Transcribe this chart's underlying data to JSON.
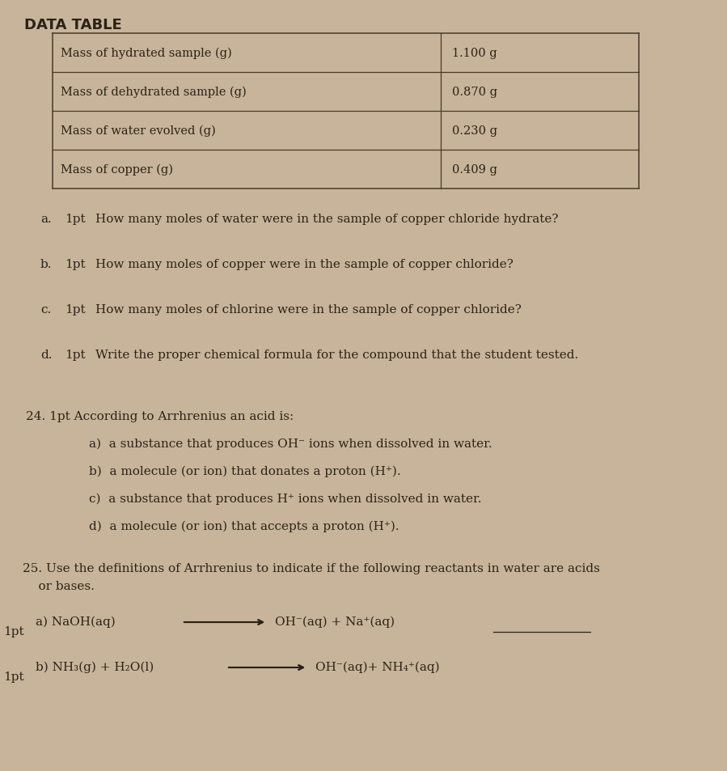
{
  "bg_color": "#c8b49a",
  "title": "DATA TABLE",
  "table_rows": [
    [
      "Mass of hydrated sample (g)",
      "1.100 g"
    ],
    [
      "Mass of dehydrated sample (g)",
      "0.870 g"
    ],
    [
      "Mass of water evolved (g)",
      "0.230 g"
    ],
    [
      "Mass of copper (g)",
      "0.409 g"
    ]
  ],
  "questions": [
    {
      "label": "a.",
      "pts": "1pt",
      "text": "How many moles of water were in the sample of copper chloride hydrate?"
    },
    {
      "label": "b.",
      "pts": "1pt",
      "text": "How many moles of copper were in the sample of copper chloride?"
    },
    {
      "label": "c.",
      "pts": "1pt",
      "text": "How many moles of chlorine were in the sample of copper chloride?"
    },
    {
      "label": "d.",
      "pts": "1pt",
      "text": "Write the proper chemical formula for the compound that the student tested."
    }
  ],
  "q24_header": "24. 1pt According to Arrhrenius an acid is:",
  "q24_options": [
    "a)  a substance that produces OH⁻ ions when dissolved in water.",
    "b)  a molecule (or ion) that donates a proton (H⁺).",
    "c)  a substance that produces H⁺ ions when dissolved in water.",
    "d)  a molecule (or ion) that accepts a proton (H⁺)."
  ],
  "q25_line1": "25. Use the definitions of Arrhrenius to indicate if the following reactants in water are acids",
  "q25_line2": "    or bases.",
  "q25a_pts": "1pt",
  "q25a_label": "a) NaOH(aq)",
  "q25a_right": "OH⁻(aq) + Na⁺(aq)",
  "q25b_pts": "1pt",
  "q25b_label": "b) NH₃(g) + H₂O(l)",
  "q25b_right": "OH⁻(aq)+ NH₄⁺(aq)",
  "font_color": "#2a2218",
  "border_color": "#4a3a28",
  "title_fontsize": 13,
  "body_fontsize": 11,
  "table_fontsize": 10.5
}
